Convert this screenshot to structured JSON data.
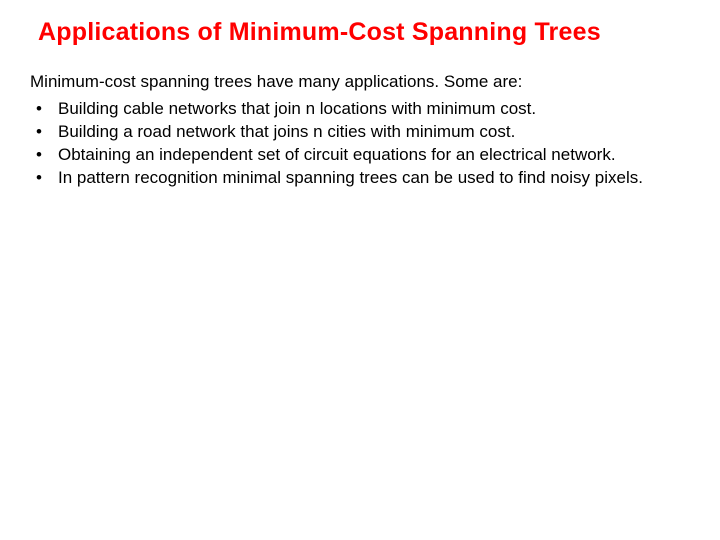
{
  "title_color": "#ff0000",
  "text_color": "#000000",
  "background_color": "#ffffff",
  "title": "Applications of Minimum-Cost Spanning Trees",
  "intro": "Minimum-cost spanning trees have many applications. Some are:",
  "bullets": [
    "Building cable networks that join n locations with minimum cost.",
    "Building a road network that joins n cities with minimum cost.",
    "Obtaining an independent set of circuit equations for an electrical network.",
    "In pattern recognition minimal spanning trees can be used to find noisy pixels."
  ]
}
